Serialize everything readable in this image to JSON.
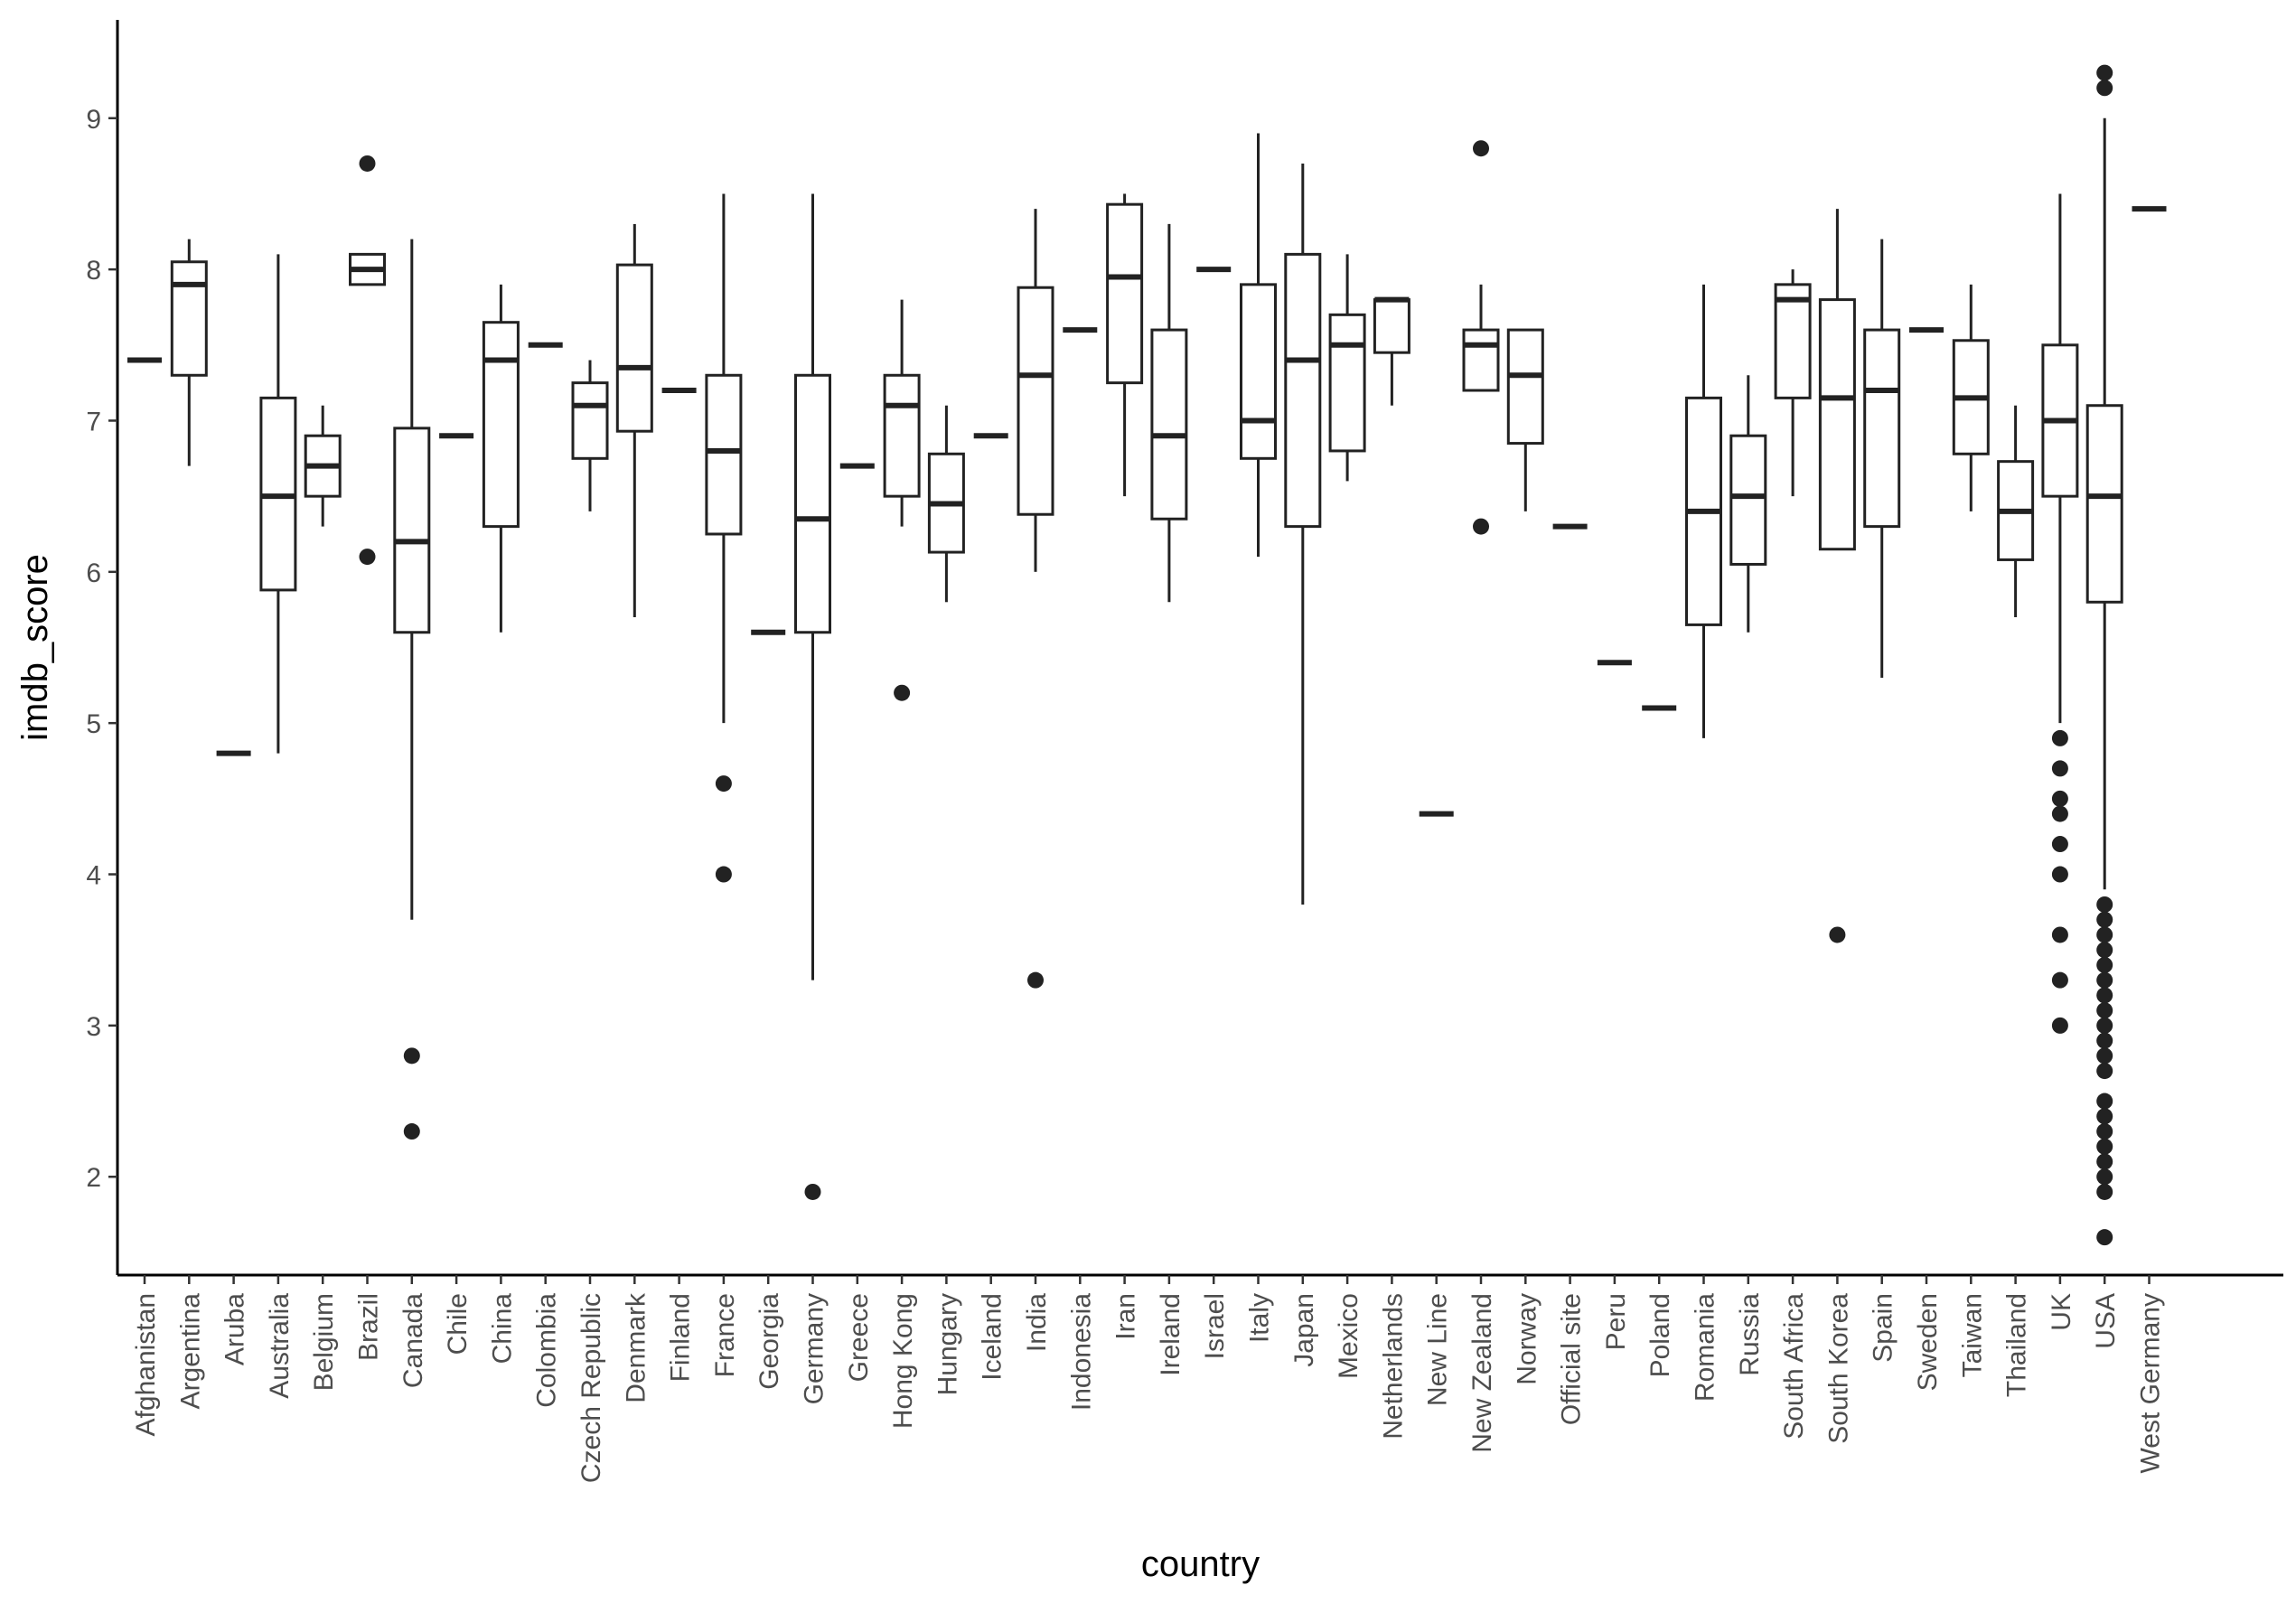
{
  "chart_data": {
    "type": "boxplot",
    "title": "",
    "xlabel": "country",
    "ylabel": "imdb_score",
    "ylim": [
      1.35,
      9.65
    ],
    "yticks": [
      2,
      3,
      4,
      5,
      6,
      7,
      8,
      9
    ],
    "grid": false,
    "legend": "none",
    "categories": [
      "Afghanistan",
      "Argentina",
      "Aruba",
      "Australia",
      "Belgium",
      "Brazil",
      "Canada",
      "Chile",
      "China",
      "Colombia",
      "Czech Republic",
      "Denmark",
      "Finland",
      "France",
      "Georgia",
      "Germany",
      "Greece",
      "Hong Kong",
      "Hungary",
      "Iceland",
      "India",
      "Indonesia",
      "Iran",
      "Ireland",
      "Israel",
      "Italy",
      "Japan",
      "Mexico",
      "Netherlands",
      "New Line",
      "New Zealand",
      "Norway",
      "Official site",
      "Peru",
      "Poland",
      "Romania",
      "Russia",
      "South Africa",
      "South Korea",
      "Spain",
      "Sweden",
      "Taiwan",
      "Thailand",
      "UK",
      "USA",
      "West Germany"
    ],
    "boxes": [
      {
        "min": 7.4,
        "q1": 7.4,
        "median": 7.4,
        "q3": 7.4,
        "max": 7.4,
        "outliers": []
      },
      {
        "min": 6.7,
        "q1": 7.3,
        "median": 7.9,
        "q3": 8.05,
        "max": 8.2,
        "outliers": []
      },
      {
        "min": 4.8,
        "q1": 4.8,
        "median": 4.8,
        "q3": 4.8,
        "max": 4.8,
        "outliers": []
      },
      {
        "min": 4.8,
        "q1": 5.88,
        "median": 6.5,
        "q3": 7.15,
        "max": 8.1,
        "outliers": []
      },
      {
        "min": 6.3,
        "q1": 6.5,
        "median": 6.7,
        "q3": 6.9,
        "max": 7.1,
        "outliers": []
      },
      {
        "min": 7.9,
        "q1": 7.9,
        "median": 8.0,
        "q3": 8.1,
        "max": 8.1,
        "outliers": [
          8.7,
          6.1
        ]
      },
      {
        "min": 3.7,
        "q1": 5.6,
        "median": 6.2,
        "q3": 6.95,
        "max": 8.2,
        "outliers": [
          2.8,
          2.3
        ]
      },
      {
        "min": 6.9,
        "q1": 6.9,
        "median": 6.9,
        "q3": 6.9,
        "max": 6.9,
        "outliers": []
      },
      {
        "min": 5.6,
        "q1": 6.3,
        "median": 7.4,
        "q3": 7.65,
        "max": 7.9,
        "outliers": []
      },
      {
        "min": 7.5,
        "q1": 7.5,
        "median": 7.5,
        "q3": 7.5,
        "max": 7.5,
        "outliers": []
      },
      {
        "min": 6.4,
        "q1": 6.75,
        "median": 7.1,
        "q3": 7.25,
        "max": 7.4,
        "outliers": []
      },
      {
        "min": 5.7,
        "q1": 6.93,
        "median": 7.35,
        "q3": 8.03,
        "max": 8.3,
        "outliers": []
      },
      {
        "min": 7.2,
        "q1": 7.2,
        "median": 7.2,
        "q3": 7.2,
        "max": 7.2,
        "outliers": []
      },
      {
        "min": 5.0,
        "q1": 6.25,
        "median": 6.8,
        "q3": 7.3,
        "max": 8.5,
        "outliers": [
          4.6,
          4.0
        ]
      },
      {
        "min": 5.6,
        "q1": 5.6,
        "median": 5.6,
        "q3": 5.6,
        "max": 5.6,
        "outliers": []
      },
      {
        "min": 3.3,
        "q1": 5.6,
        "median": 6.35,
        "q3": 7.3,
        "max": 8.5,
        "outliers": [
          1.9
        ]
      },
      {
        "min": 6.7,
        "q1": 6.7,
        "median": 6.7,
        "q3": 6.7,
        "max": 6.7,
        "outliers": []
      },
      {
        "min": 6.3,
        "q1": 6.5,
        "median": 7.1,
        "q3": 7.3,
        "max": 7.8,
        "outliers": [
          5.2
        ]
      },
      {
        "min": 5.8,
        "q1": 6.13,
        "median": 6.45,
        "q3": 6.78,
        "max": 7.1,
        "outliers": []
      },
      {
        "min": 6.9,
        "q1": 6.9,
        "median": 6.9,
        "q3": 6.9,
        "max": 6.9,
        "outliers": []
      },
      {
        "min": 6.0,
        "q1": 6.38,
        "median": 7.3,
        "q3": 7.88,
        "max": 8.4,
        "outliers": [
          3.3
        ]
      },
      {
        "min": 7.6,
        "q1": 7.6,
        "median": 7.6,
        "q3": 7.6,
        "max": 7.6,
        "outliers": []
      },
      {
        "min": 6.5,
        "q1": 7.25,
        "median": 7.95,
        "q3": 8.43,
        "max": 8.5,
        "outliers": []
      },
      {
        "min": 5.8,
        "q1": 6.35,
        "median": 6.9,
        "q3": 7.6,
        "max": 8.3,
        "outliers": []
      },
      {
        "min": 8.0,
        "q1": 8.0,
        "median": 8.0,
        "q3": 8.0,
        "max": 8.0,
        "outliers": []
      },
      {
        "min": 6.1,
        "q1": 6.75,
        "median": 7.0,
        "q3": 7.9,
        "max": 8.9,
        "outliers": []
      },
      {
        "min": 3.8,
        "q1": 6.3,
        "median": 7.4,
        "q3": 8.1,
        "max": 8.7,
        "outliers": []
      },
      {
        "min": 6.6,
        "q1": 6.8,
        "median": 7.5,
        "q3": 7.7,
        "max": 8.1,
        "outliers": []
      },
      {
        "min": 7.1,
        "q1": 7.45,
        "median": 7.8,
        "q3": 7.8,
        "max": 7.8,
        "outliers": []
      },
      {
        "min": 4.4,
        "q1": 4.4,
        "median": 4.4,
        "q3": 4.4,
        "max": 4.4,
        "outliers": []
      },
      {
        "min": 7.2,
        "q1": 7.2,
        "median": 7.5,
        "q3": 7.6,
        "max": 7.9,
        "outliers": [
          8.8,
          6.3
        ]
      },
      {
        "min": 6.4,
        "q1": 6.85,
        "median": 7.3,
        "q3": 7.6,
        "max": 7.6,
        "outliers": []
      },
      {
        "min": 6.3,
        "q1": 6.3,
        "median": 6.3,
        "q3": 6.3,
        "max": 6.3,
        "outliers": []
      },
      {
        "min": 5.4,
        "q1": 5.4,
        "median": 5.4,
        "q3": 5.4,
        "max": 5.4,
        "outliers": []
      },
      {
        "min": 5.1,
        "q1": 5.1,
        "median": 5.1,
        "q3": 5.1,
        "max": 5.1,
        "outliers": []
      },
      {
        "min": 4.9,
        "q1": 5.65,
        "median": 6.4,
        "q3": 7.15,
        "max": 7.9,
        "outliers": []
      },
      {
        "min": 5.6,
        "q1": 6.05,
        "median": 6.5,
        "q3": 6.9,
        "max": 7.3,
        "outliers": []
      },
      {
        "min": 6.5,
        "q1": 7.15,
        "median": 7.8,
        "q3": 7.9,
        "max": 8.0,
        "outliers": []
      },
      {
        "min": 6.15,
        "q1": 6.15,
        "median": 7.15,
        "q3": 7.8,
        "max": 8.4,
        "outliers": [
          3.6
        ]
      },
      {
        "min": 5.3,
        "q1": 6.3,
        "median": 7.2,
        "q3": 7.6,
        "max": 8.2,
        "outliers": []
      },
      {
        "min": 7.6,
        "q1": 7.6,
        "median": 7.6,
        "q3": 7.6,
        "max": 7.6,
        "outliers": []
      },
      {
        "min": 6.4,
        "q1": 6.78,
        "median": 7.15,
        "q3": 7.53,
        "max": 7.9,
        "outliers": []
      },
      {
        "min": 5.7,
        "q1": 6.08,
        "median": 6.4,
        "q3": 6.73,
        "max": 7.1,
        "outliers": []
      },
      {
        "min": 5.0,
        "q1": 6.5,
        "median": 7.0,
        "q3": 7.5,
        "max": 8.5,
        "outliers": [
          4.9,
          4.7,
          4.5,
          4.4,
          4.2,
          4.0,
          3.6,
          3.3,
          3.0
        ]
      },
      {
        "min": 3.9,
        "q1": 5.8,
        "median": 6.5,
        "q3": 7.1,
        "max": 9.0,
        "outliers": [
          9.3,
          9.2,
          3.8,
          3.7,
          3.6,
          3.5,
          3.4,
          3.3,
          3.2,
          3.1,
          3.0,
          2.9,
          2.8,
          2.7,
          2.5,
          2.4,
          2.3,
          2.2,
          2.1,
          2.0,
          1.9,
          1.6
        ]
      },
      {
        "min": 8.4,
        "q1": 8.4,
        "median": 8.4,
        "q3": 8.4,
        "max": 8.4,
        "outliers": []
      }
    ]
  }
}
